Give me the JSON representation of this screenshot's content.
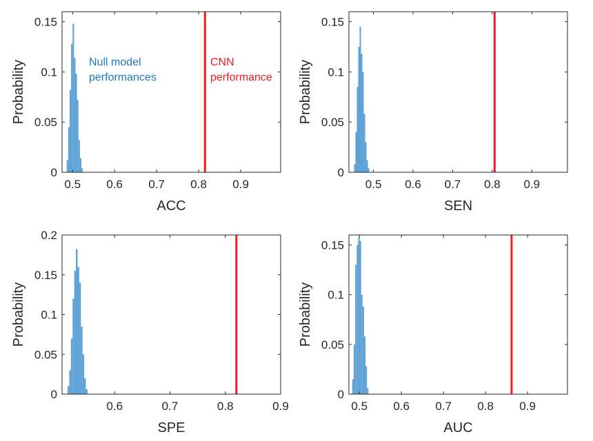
{
  "colors": {
    "null_bar": "#5fa2d6",
    "cnn_line": "#ee1c1c",
    "null_text": "#1f77c4",
    "cnn_text": "#ee1c1c",
    "axis": "#262626"
  },
  "chart_data": [
    {
      "type": "bar",
      "title": "",
      "xlabel": "ACC",
      "ylabel": "Probability",
      "xlim": [
        0.475,
        0.995
      ],
      "ylim": [
        0,
        0.16
      ],
      "xticks": [
        0.5,
        0.6,
        0.7,
        0.8,
        0.9
      ],
      "xtick_labels": [
        "0.5",
        "0.6",
        "0.7",
        "0.8",
        "0.9"
      ],
      "yticks": [
        0,
        0.05,
        0.1,
        0.15
      ],
      "ytick_labels": [
        "0",
        "0.05",
        "0.1",
        "0.15"
      ],
      "bin_width": 0.0035,
      "bin_starts": [
        0.486,
        0.4895,
        0.493,
        0.4965,
        0.5,
        0.5035,
        0.507,
        0.5105,
        0.514,
        0.5175,
        0.521
      ],
      "values": [
        0.012,
        0.045,
        0.082,
        0.128,
        0.148,
        0.114,
        0.098,
        0.072,
        0.032,
        0.014,
        0.004
      ],
      "cnn_performance": 0.815,
      "annotations": {
        "null_model": [
          "Null model",
          "performances"
        ],
        "cnn": [
          "CNN",
          "performance"
        ]
      }
    },
    {
      "type": "bar",
      "title": "",
      "xlabel": "SEN",
      "ylabel": "Probability",
      "xlim": [
        0.438,
        0.99
      ],
      "ylim": [
        0,
        0.16
      ],
      "xticks": [
        0.5,
        0.6,
        0.7,
        0.8,
        0.9
      ],
      "xtick_labels": [
        "0.5",
        "0.6",
        "0.7",
        "0.8",
        "0.9"
      ],
      "yticks": [
        0,
        0.05,
        0.1,
        0.15
      ],
      "ytick_labels": [
        "0",
        "0.05",
        "0.1",
        "0.15"
      ],
      "bin_width": 0.0035,
      "bin_starts": [
        0.451,
        0.4545,
        0.458,
        0.4615,
        0.465,
        0.4685,
        0.472,
        0.4755,
        0.479,
        0.4825,
        0.486
      ],
      "values": [
        0.008,
        0.04,
        0.085,
        0.125,
        0.145,
        0.118,
        0.1,
        0.058,
        0.03,
        0.012,
        0.004
      ],
      "cnn_performance": 0.806
    },
    {
      "type": "bar",
      "title": "",
      "xlabel": "SPE",
      "ylabel": "Probability",
      "xlim": [
        0.505,
        0.9
      ],
      "ylim": [
        0,
        0.2
      ],
      "xticks": [
        0.6,
        0.7,
        0.8,
        0.9
      ],
      "xtick_labels": [
        "0.6",
        "0.7",
        "0.8",
        "0.9"
      ],
      "yticks": [
        0,
        0.05,
        0.1,
        0.15,
        0.2
      ],
      "ytick_labels": [
        "0",
        "0.05",
        "0.1",
        "0.15",
        "0.2"
      ],
      "bin_width": 0.003,
      "bin_starts": [
        0.515,
        0.518,
        0.521,
        0.524,
        0.527,
        0.53,
        0.533,
        0.536,
        0.539,
        0.542,
        0.545,
        0.548
      ],
      "values": [
        0.01,
        0.03,
        0.07,
        0.12,
        0.155,
        0.182,
        0.16,
        0.14,
        0.085,
        0.05,
        0.02,
        0.006
      ],
      "cnn_performance": 0.82
    },
    {
      "type": "bar",
      "title": "",
      "xlabel": "AUC",
      "ylabel": "Probability",
      "xlim": [
        0.475,
        0.995
      ],
      "ylim": [
        0,
        0.16
      ],
      "xticks": [
        0.5,
        0.6,
        0.7,
        0.8,
        0.9
      ],
      "xtick_labels": [
        "0.5",
        "0.6",
        "0.7",
        "0.8",
        "0.9"
      ],
      "yticks": [
        0,
        0.05,
        0.1,
        0.15
      ],
      "ytick_labels": [
        "0",
        "0.05",
        "0.1",
        "0.15"
      ],
      "bin_width": 0.0035,
      "bin_starts": [
        0.483,
        0.4865,
        0.49,
        0.4935,
        0.497,
        0.5005,
        0.504,
        0.5075,
        0.511,
        0.5145,
        0.518
      ],
      "values": [
        0.015,
        0.05,
        0.13,
        0.15,
        0.158,
        0.154,
        0.1,
        0.088,
        0.058,
        0.028,
        0.006
      ],
      "cnn_performance": 0.862
    }
  ]
}
